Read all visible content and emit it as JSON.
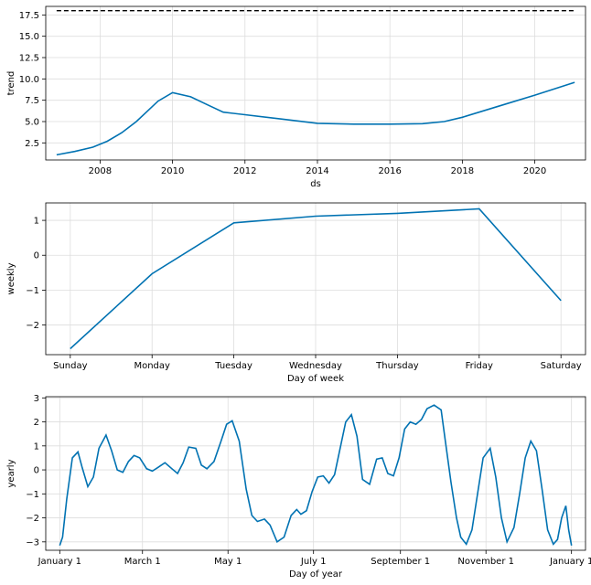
{
  "chart_data": [
    {
      "type": "line",
      "xlabel": "ds",
      "ylabel": "trend",
      "xlim": [
        2006.5,
        2021.4
      ],
      "ylim": [
        0.5,
        18.5
      ],
      "xticks": [
        2008,
        2010,
        2012,
        2014,
        2016,
        2018,
        2020
      ],
      "xtick_labels": [
        "2008",
        "2010",
        "2012",
        "2014",
        "2016",
        "2018",
        "2020"
      ],
      "yticks": [
        2.5,
        5.0,
        7.5,
        10.0,
        12.5,
        15.0,
        17.5
      ],
      "ytick_labels": [
        "2.5",
        "5.0",
        "7.5",
        "10.0",
        "12.5",
        "15.0",
        "17.5"
      ],
      "grid": true,
      "series": [
        {
          "style": "solid",
          "color": "#0072b2",
          "x": [
            2006.8,
            2007.3,
            2007.8,
            2008.2,
            2008.6,
            2009.0,
            2009.6,
            2010.0,
            2010.5,
            2011.0,
            2011.4,
            2012.0,
            2013.0,
            2014.0,
            2015.0,
            2016.0,
            2016.9,
            2017.5,
            2018.0,
            2019.0,
            2020.0,
            2021.1
          ],
          "y": [
            1.1,
            1.5,
            2.0,
            2.7,
            3.7,
            5.0,
            7.4,
            8.4,
            7.9,
            6.9,
            6.1,
            5.8,
            5.3,
            4.8,
            4.7,
            4.7,
            4.75,
            5.0,
            5.5,
            6.8,
            8.1,
            9.6
          ]
        },
        {
          "style": "dashed",
          "color": "#000000",
          "x": [
            2006.8,
            2021.1
          ],
          "y": [
            18.0,
            18.0
          ]
        }
      ]
    },
    {
      "type": "line",
      "xlabel": "Day of week",
      "ylabel": "weekly",
      "xlim": [
        -0.3,
        6.3
      ],
      "ylim": [
        -2.85,
        1.5
      ],
      "categories": [
        "Sunday",
        "Monday",
        "Tuesday",
        "Wednesday",
        "Thursday",
        "Friday",
        "Saturday"
      ],
      "yticks": [
        -2,
        -1,
        0,
        1
      ],
      "ytick_labels": [
        "−2",
        "−1",
        "0",
        "1"
      ],
      "grid": true,
      "series": [
        {
          "style": "solid",
          "color": "#0072b2",
          "values": [
            -2.68,
            -0.53,
            0.93,
            1.12,
            1.2,
            1.33,
            -1.3
          ]
        }
      ]
    },
    {
      "type": "line",
      "xlabel": "Day of year",
      "ylabel": "yearly",
      "xlim": [
        -10,
        375
      ],
      "ylim": [
        -3.35,
        3.05
      ],
      "xticks": [
        0,
        59,
        120,
        181,
        243,
        304,
        365
      ],
      "xtick_labels": [
        "January 1",
        "March 1",
        "May 1",
        "July 1",
        "September 1",
        "November 1",
        "January 1"
      ],
      "yticks": [
        -3,
        -2,
        -1,
        0,
        1,
        2,
        3
      ],
      "ytick_labels": [
        "−3",
        "−2",
        "−1",
        "0",
        "1",
        "2",
        "3"
      ],
      "grid": true,
      "series": [
        {
          "style": "solid",
          "color": "#0072b2",
          "x": [
            0,
            2,
            5,
            9,
            13,
            16,
            20,
            24,
            28,
            33,
            37,
            41,
            45,
            49,
            53,
            57,
            62,
            66,
            70,
            75,
            80,
            84,
            88,
            92,
            97,
            101,
            105,
            110,
            115,
            119,
            123,
            128,
            133,
            137,
            141,
            146,
            150,
            155,
            160,
            165,
            169,
            172,
            176,
            180,
            184,
            188,
            192,
            196,
            200,
            204,
            208,
            212,
            216,
            221,
            226,
            230,
            234,
            238,
            242,
            246,
            250,
            254,
            258,
            262,
            267,
            272,
            275,
            279,
            283,
            286,
            290,
            294,
            298,
            302,
            307,
            311,
            315,
            319,
            324,
            328,
            332,
            336,
            340,
            344,
            348,
            352,
            355,
            358,
            361,
            363,
            365
          ],
          "y": [
            -3.15,
            -2.8,
            -1.2,
            0.5,
            0.75,
            0.1,
            -0.7,
            -0.3,
            0.9,
            1.45,
            0.8,
            0.0,
            -0.1,
            0.35,
            0.6,
            0.5,
            0.05,
            -0.05,
            0.1,
            0.3,
            0.05,
            -0.15,
            0.3,
            0.95,
            0.9,
            0.2,
            0.05,
            0.35,
            1.2,
            1.9,
            2.05,
            1.2,
            -0.8,
            -1.9,
            -2.15,
            -2.05,
            -2.3,
            -3.0,
            -2.8,
            -1.9,
            -1.65,
            -1.85,
            -1.7,
            -0.9,
            -0.3,
            -0.25,
            -0.55,
            -0.2,
            0.9,
            2.0,
            2.3,
            1.4,
            -0.4,
            -0.6,
            0.45,
            0.5,
            -0.15,
            -0.25,
            0.5,
            1.7,
            2.0,
            1.9,
            2.1,
            2.55,
            2.7,
            2.5,
            1.2,
            -0.5,
            -2.0,
            -2.8,
            -3.1,
            -2.5,
            -1.0,
            0.5,
            0.9,
            -0.3,
            -2.0,
            -3.0,
            -2.4,
            -1.0,
            0.5,
            1.2,
            0.8,
            -0.8,
            -2.5,
            -3.1,
            -2.9,
            -2.0,
            -1.5,
            -2.5,
            -3.15
          ]
        }
      ]
    }
  ]
}
